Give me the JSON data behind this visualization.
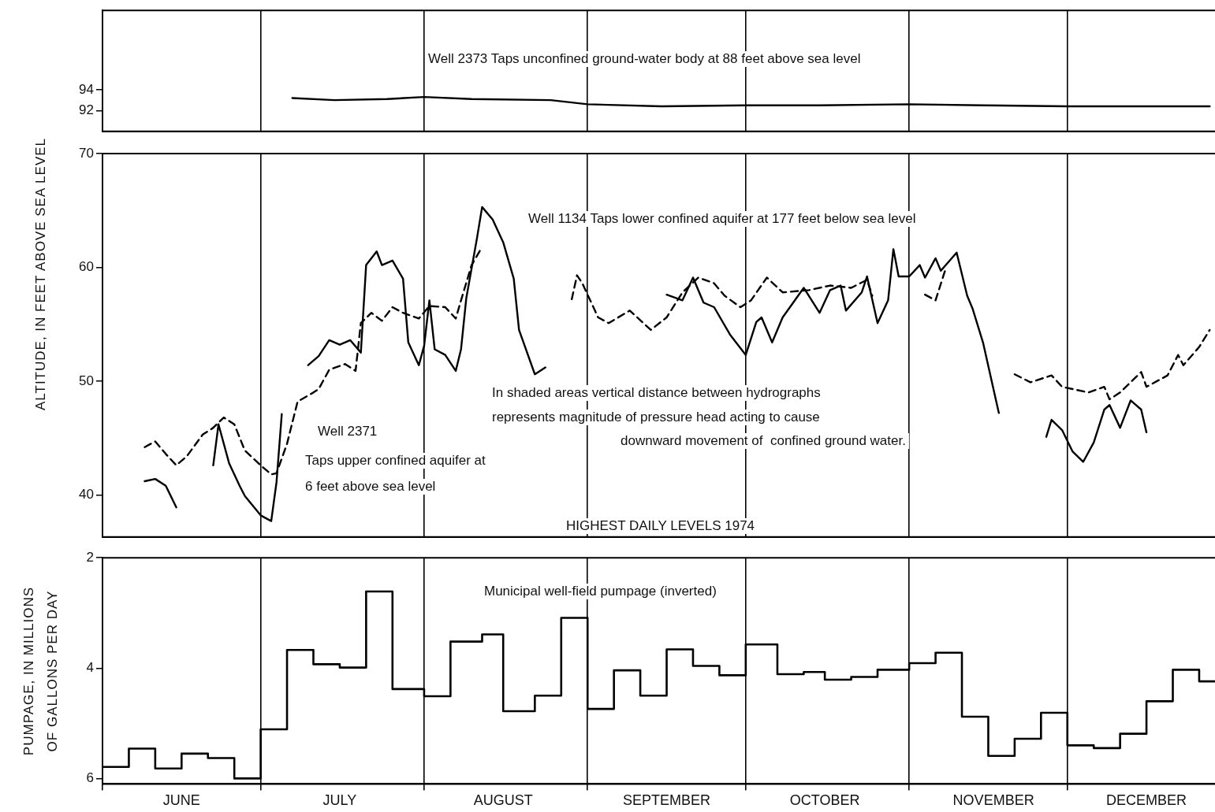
{
  "chart_data": [
    {
      "type": "line",
      "xlim": [
        "1974-06-01",
        "1974-12-29"
      ],
      "ylim": [
        90,
        101.6
      ],
      "yticks": [
        92,
        94
      ],
      "grid": "x",
      "tick_labels": "y",
      "marker": "none",
      "xticks": [
        {
          "value": "1974-06-01",
          "label": null
        },
        {
          "value": "1974-07-01",
          "label": null
        },
        {
          "value": "1974-08-01",
          "label": null
        },
        {
          "value": "1974-09-01",
          "label": null
        },
        {
          "value": "1974-10-01",
          "label": null
        },
        {
          "value": "1974-11-01",
          "label": null
        },
        {
          "value": "1974-12-01",
          "label": null
        }
      ],
      "series": [
        {
          "color": "#000000",
          "line_style": "solid",
          "x": [
            "1974-07-07",
            "1974-07-15",
            "1974-07-25",
            "1974-08-01",
            "1974-08-10",
            "1974-08-25",
            "1974-09-01",
            "1974-09-15",
            "1974-10-01",
            "1974-10-15",
            "1974-11-01",
            "1974-11-15",
            "1974-12-01",
            "1974-12-28"
          ],
          "values": [
            93.2,
            93.0,
            93.1,
            93.3,
            93.1,
            93.0,
            92.6,
            92.4,
            92.5,
            92.5,
            92.6,
            92.5,
            92.4,
            92.4
          ]
        }
      ],
      "annotations": [
        "Well 2373 Taps unconfined ground-water body at 88 feet above sea level"
      ]
    },
    {
      "type": "line",
      "ylabel": "ALTITUDE, IN FEET ABOVE SEA LEVEL",
      "xlim": [
        "1974-06-01",
        "1974-12-29"
      ],
      "ylim": [
        36.3,
        70
      ],
      "yticks": [
        40,
        50,
        60,
        70
      ],
      "grid": "x",
      "tick_labels": "y",
      "marker": "none",
      "xticks": [
        {
          "value": "1974-06-01",
          "label": null
        },
        {
          "value": "1974-07-01",
          "label": null
        },
        {
          "value": "1974-08-01",
          "label": null
        },
        {
          "value": "1974-09-01",
          "label": null
        },
        {
          "value": "1974-10-01",
          "label": null
        },
        {
          "value": "1974-11-01",
          "label": null
        },
        {
          "value": "1974-12-01",
          "label": null
        }
      ],
      "series": [
        {
          "color": "#000000",
          "line_style": "solid",
          "x": [
            "1974-06-09",
            "1974-06-11",
            "1974-06-13",
            "1974-06-15",
            "1974-06-18",
            "1974-06-22",
            "1974-06-23",
            "1974-06-25",
            "1974-06-27",
            "1974-06-28",
            "1974-07-01",
            "1974-07-03",
            "1974-07-04",
            "1974-07-05",
            "1974-07-07",
            "1974-07-10",
            "1974-07-12",
            "1974-07-14",
            "1974-07-16",
            "1974-07-18",
            "1974-07-20",
            "1974-07-21",
            "1974-07-23",
            "1974-07-24",
            "1974-07-26",
            "1974-07-28",
            "1974-07-29",
            "1974-07-31",
            "1974-08-01",
            "1974-08-02",
            "1974-08-03",
            "1974-08-05",
            "1974-08-07",
            "1974-08-08",
            "1974-08-09",
            "1974-08-11",
            "1974-08-12",
            "1974-08-14",
            "1974-08-16",
            "1974-08-18",
            "1974-08-19",
            "1974-08-22",
            "1974-08-24",
            "1974-09-01",
            "1974-09-16",
            "1974-09-19",
            "1974-09-21",
            "1974-09-23",
            "1974-09-25",
            "1974-09-28",
            "1974-10-01",
            "1974-10-03",
            "1974-10-04",
            "1974-10-06",
            "1974-10-08",
            "1974-10-10",
            "1974-10-12",
            "1974-10-15",
            "1974-10-17",
            "1974-10-19",
            "1974-10-20",
            "1974-10-23",
            "1974-10-24",
            "1974-10-26",
            "1974-10-28",
            "1974-10-29",
            "1974-10-30",
            "1974-11-01",
            "1974-11-03",
            "1974-11-04",
            "1974-11-06",
            "1974-11-07",
            "1974-11-10",
            "1974-11-12",
            "1974-11-13",
            "1974-11-15",
            "1974-11-18",
            "1974-11-22",
            "1974-11-27",
            "1974-11-28",
            "1974-11-30",
            "1974-12-02",
            "1974-12-04",
            "1974-12-06",
            "1974-12-08",
            "1974-12-09",
            "1974-12-11",
            "1974-12-13",
            "1974-12-15",
            "1974-12-16"
          ],
          "values": [
            41.2,
            41.4,
            40.8,
            38.9,
            null,
            42.6,
            46.2,
            42.8,
            40.8,
            39.9,
            38.2,
            37.7,
            41.1,
            47.1,
            null,
            51.4,
            52.2,
            53.6,
            53.2,
            53.6,
            52.5,
            60.2,
            61.4,
            60.2,
            60.6,
            59.0,
            53.4,
            51.4,
            53.1,
            57.1,
            52.8,
            52.3,
            50.9,
            52.8,
            57.3,
            62.5,
            65.3,
            64.2,
            62.2,
            59.0,
            54.5,
            50.6,
            51.2,
            null,
            57.6,
            57.1,
            59.1,
            56.9,
            56.5,
            54.1,
            52.3,
            55.2,
            55.6,
            53.4,
            55.6,
            56.9,
            58.2,
            56.0,
            58.0,
            58.4,
            56.2,
            57.8,
            59.2,
            55.1,
            57.1,
            61.6,
            59.2,
            59.2,
            60.2,
            59.1,
            60.8,
            59.7,
            61.3,
            57.5,
            56.4,
            53.4,
            47.2,
            null,
            45.1,
            46.6,
            45.7,
            43.8,
            42.9,
            44.6,
            47.5,
            47.9,
            45.9,
            48.3,
            47.5,
            45.5
          ]
        },
        {
          "color": "#000000",
          "line_style": "dashed",
          "x": [
            "1974-06-09",
            "1974-06-11",
            "1974-06-13",
            "1974-06-15",
            "1974-06-17",
            "1974-06-20",
            "1974-06-22",
            "1974-06-24",
            "1974-06-26",
            "1974-06-28",
            "1974-07-01",
            "1974-07-03",
            "1974-07-04",
            "1974-07-06",
            "1974-07-08",
            "1974-07-11",
            "1974-07-12",
            "1974-07-14",
            "1974-07-17",
            "1974-07-19",
            "1974-07-20",
            "1974-07-22",
            "1974-07-24",
            "1974-07-26",
            "1974-07-28",
            "1974-07-31",
            "1974-08-02",
            "1974-08-05",
            "1974-08-07",
            "1974-08-08",
            "1974-08-10",
            "1974-08-12",
            "1974-08-20",
            "1974-08-29",
            "1974-08-30",
            "1974-08-31",
            "1974-09-03",
            "1974-09-05",
            "1974-09-09",
            "1974-09-13",
            "1974-09-16",
            "1974-09-19",
            "1974-09-22",
            "1974-09-25",
            "1974-09-27",
            "1974-09-30",
            "1974-10-02",
            "1974-10-05",
            "1974-10-08",
            "1974-10-13",
            "1974-10-17",
            "1974-10-21",
            "1974-10-24",
            "1974-10-25",
            "1974-10-30",
            "1974-11-04",
            "1974-11-06",
            "1974-11-08",
            "1974-11-15",
            "1974-11-21",
            "1974-11-24",
            "1974-11-28",
            "1974-11-30",
            "1974-12-05",
            "1974-12-08",
            "1974-12-09",
            "1974-12-11",
            "1974-12-15",
            "1974-12-16",
            "1974-12-20",
            "1974-12-22",
            "1974-12-23",
            "1974-12-26",
            "1974-12-28"
          ],
          "values": [
            44.2,
            44.7,
            43.6,
            42.6,
            43.4,
            45.3,
            45.9,
            46.8,
            46.2,
            43.9,
            42.6,
            41.8,
            41.9,
            44.5,
            48.2,
            49.0,
            49.3,
            51.0,
            51.5,
            50.9,
            55.1,
            56.0,
            55.3,
            56.5,
            56.0,
            55.5,
            56.6,
            56.5,
            55.5,
            57.1,
            60.2,
            61.8,
            null,
            57.2,
            59.3,
            58.6,
            55.6,
            55.1,
            56.2,
            54.5,
            55.6,
            57.8,
            59.1,
            58.6,
            57.5,
            56.5,
            57.1,
            59.1,
            57.8,
            58.0,
            58.4,
            58.2,
            58.9,
            57.5,
            null,
            57.6,
            57.1,
            60.0,
            null,
            50.6,
            49.9,
            50.5,
            49.5,
            49.0,
            49.5,
            48.4,
            49.0,
            50.8,
            49.5,
            50.5,
            52.3,
            51.4,
            53.0,
            54.5
          ]
        }
      ],
      "annotations": [
        "Well 1134 Taps lower confined aquifer at 177 feet below sea level",
        "Well 2371",
        "Taps upper confined aquifer at",
        "6 feet above sea level",
        "In shaded areas vertical distance between hydrographs",
        "represents magnitude of pressure head acting to cause",
        "downward movement of  confined ground water.",
        "HIGHEST DAILY LEVELS 1974"
      ]
    },
    {
      "type": "step",
      "ylabel": "PUMPAGE, IN MILLIONS OF GALLONS PER DAY",
      "xlim": [
        "1974-06-01",
        "1974-12-29"
      ],
      "ylim": [
        6.1,
        2
      ],
      "yticks": [
        2,
        4,
        6
      ],
      "grid": "x",
      "marker": "none",
      "xticks": [
        {
          "value": "1974-06-01",
          "label": null
        },
        {
          "value": "1974-06-16",
          "label": "JUNE"
        },
        {
          "value": "1974-07-01",
          "label": null
        },
        {
          "value": "1974-07-16",
          "label": "JULY"
        },
        {
          "value": "1974-08-01",
          "label": null
        },
        {
          "value": "1974-08-16",
          "label": "AUGUST"
        },
        {
          "value": "1974-09-01",
          "label": null
        },
        {
          "value": "1974-09-16",
          "label": "SEPTEMBER"
        },
        {
          "value": "1974-10-01",
          "label": null
        },
        {
          "value": "1974-10-16",
          "label": "OCTOBER"
        },
        {
          "value": "1974-11-01",
          "label": null
        },
        {
          "value": "1974-11-17",
          "label": "NOVEMBER"
        },
        {
          "value": "1974-12-01",
          "label": null
        },
        {
          "value": "1974-12-16",
          "label": "DECEMBER"
        }
      ],
      "series": [
        {
          "color": "#000000",
          "line_style": "solid",
          "x": [
            "1974-06-01",
            "1974-06-06",
            "1974-06-11",
            "1974-06-16",
            "1974-06-21",
            "1974-06-26",
            "1974-07-01",
            "1974-07-06",
            "1974-07-11",
            "1974-07-16",
            "1974-07-21",
            "1974-07-26",
            "1974-08-01",
            "1974-08-06",
            "1974-08-12",
            "1974-08-16",
            "1974-08-22",
            "1974-08-27",
            "1974-09-01",
            "1974-09-06",
            "1974-09-11",
            "1974-09-16",
            "1974-09-21",
            "1974-09-26",
            "1974-10-01",
            "1974-10-07",
            "1974-10-12",
            "1974-10-16",
            "1974-10-21",
            "1974-10-26",
            "1974-11-01",
            "1974-11-06",
            "1974-11-11",
            "1974-11-16",
            "1974-11-21",
            "1974-11-26",
            "1974-12-01",
            "1974-12-06",
            "1974-12-11",
            "1974-12-16",
            "1974-12-21",
            "1974-12-26",
            "1974-12-29"
          ],
          "values": [
            5.79,
            5.46,
            5.82,
            5.55,
            5.63,
            6.0,
            5.11,
            3.67,
            3.93,
            3.99,
            2.61,
            4.38,
            4.51,
            3.52,
            3.39,
            4.78,
            4.5,
            3.09,
            4.74,
            4.04,
            4.5,
            3.66,
            3.96,
            4.13,
            3.57,
            4.11,
            4.07,
            4.21,
            4.16,
            4.03,
            3.91,
            3.72,
            4.88,
            5.59,
            5.28,
            4.81,
            5.4,
            5.45,
            5.19,
            4.6,
            4.03,
            4.24,
            4.24
          ]
        }
      ],
      "annotations": [
        "Municipal well-field pumpage (inverted)"
      ]
    }
  ]
}
